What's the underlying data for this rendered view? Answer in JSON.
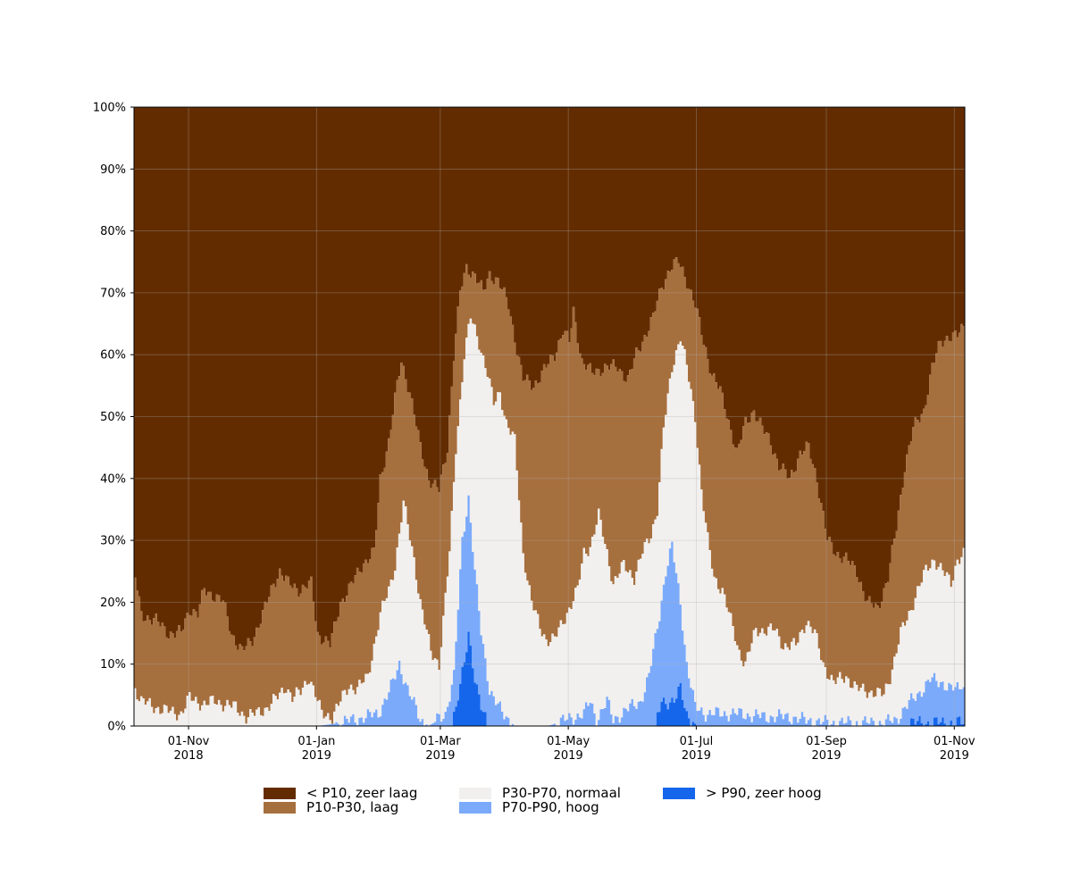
{
  "chart_data": {
    "type": "area",
    "stacked": true,
    "x_start": "2018-10-06",
    "x_end": "2019-11-06",
    "ylim": [
      0,
      100
    ],
    "y_ticks": [
      0,
      10,
      20,
      30,
      40,
      50,
      60,
      70,
      80,
      90,
      100
    ],
    "y_tick_labels": [
      "0%",
      "10%",
      "20%",
      "30%",
      "40%",
      "50%",
      "60%",
      "70%",
      "80%",
      "90%",
      "100%"
    ],
    "x_ticks": [
      {
        "date": "2018-11-01",
        "line1": "01-Nov",
        "line2": "2018"
      },
      {
        "date": "2019-01-01",
        "line1": "01-Jan",
        "line2": "2019"
      },
      {
        "date": "2019-03-01",
        "line1": "01-Mar",
        "line2": "2019"
      },
      {
        "date": "2019-05-01",
        "line1": "01-May",
        "line2": "2019"
      },
      {
        "date": "2019-07-01",
        "line1": "01-Jul",
        "line2": "2019"
      },
      {
        "date": "2019-09-01",
        "line1": "01-Sep",
        "line2": "2019"
      },
      {
        "date": "2019-11-01",
        "line1": "01-Nov",
        "line2": "2019"
      }
    ],
    "grid": true,
    "legend_position": "bottom",
    "series": [
      {
        "name": "< P10, zeer laag",
        "color": "#632c00"
      },
      {
        "name": "P10-P30, laag",
        "color": "#a66f3e"
      },
      {
        "name": "P30-P70, normaal",
        "color": "#f2f0ee"
      },
      {
        "name": "P70-P90, hoog",
        "color": "#7baafb"
      },
      {
        "name": "> P90, zeer hoog",
        "color": "#1566eb"
      }
    ],
    "cumulative_boundaries": {
      "p90": [
        [
          "2018-10-06",
          0
        ],
        [
          "2019-03-05",
          0
        ],
        [
          "2019-03-08",
          3
        ],
        [
          "2019-03-12",
          10
        ],
        [
          "2019-03-14",
          15
        ],
        [
          "2019-03-17",
          8
        ],
        [
          "2019-03-20",
          3
        ],
        [
          "2019-03-23",
          0
        ],
        [
          "2019-06-11",
          0
        ],
        [
          "2019-06-14",
          4
        ],
        [
          "2019-06-20",
          4
        ],
        [
          "2019-06-23",
          6
        ],
        [
          "2019-06-26",
          2
        ],
        [
          "2019-07-01",
          0
        ],
        [
          "2019-10-10",
          0
        ],
        [
          "2019-10-11",
          0.5
        ],
        [
          "2019-11-06",
          0.5
        ]
      ],
      "p70": [
        [
          "2018-10-06",
          0
        ],
        [
          "2019-01-01",
          0
        ],
        [
          "2019-01-12",
          0.5
        ],
        [
          "2019-01-30",
          2
        ],
        [
          "2019-02-06",
          7
        ],
        [
          "2019-02-09",
          10
        ],
        [
          "2019-02-13",
          6
        ],
        [
          "2019-02-19",
          1
        ],
        [
          "2019-02-23",
          0
        ],
        [
          "2019-03-03",
          2
        ],
        [
          "2019-03-07",
          8
        ],
        [
          "2019-03-11",
          30
        ],
        [
          "2019-03-14",
          37
        ],
        [
          "2019-03-17",
          25
        ],
        [
          "2019-03-20",
          15
        ],
        [
          "2019-03-24",
          6
        ],
        [
          "2019-03-30",
          2
        ],
        [
          "2019-04-05",
          0
        ],
        [
          "2019-04-10",
          0
        ],
        [
          "2019-04-21",
          0
        ],
        [
          "2019-05-08",
          2
        ],
        [
          "2019-05-11",
          4
        ],
        [
          "2019-05-14",
          1
        ],
        [
          "2019-05-19",
          4
        ],
        [
          "2019-05-22",
          1
        ],
        [
          "2019-05-30",
          3
        ],
        [
          "2019-06-04",
          4
        ],
        [
          "2019-06-08",
          8
        ],
        [
          "2019-06-13",
          18
        ],
        [
          "2019-06-16",
          25
        ],
        [
          "2019-06-19",
          29
        ],
        [
          "2019-06-23",
          20
        ],
        [
          "2019-06-26",
          10
        ],
        [
          "2019-06-30",
          3
        ],
        [
          "2019-07-05",
          2
        ],
        [
          "2019-07-20",
          2
        ],
        [
          "2019-08-01",
          1.5
        ],
        [
          "2019-08-14",
          1.5
        ],
        [
          "2019-08-20",
          1
        ],
        [
          "2019-09-01",
          0.5
        ],
        [
          "2019-09-28",
          0.5
        ],
        [
          "2019-10-04",
          1
        ],
        [
          "2019-10-08",
          3
        ],
        [
          "2019-10-14",
          5
        ],
        [
          "2019-10-20",
          7.5
        ],
        [
          "2019-10-26",
          7
        ],
        [
          "2019-10-30",
          6
        ],
        [
          "2019-11-03",
          6
        ],
        [
          "2019-11-04",
          7
        ],
        [
          "2019-11-06",
          6
        ]
      ],
      "p30": [
        [
          "2018-10-06",
          6
        ],
        [
          "2018-10-09",
          4
        ],
        [
          "2018-10-16",
          3
        ],
        [
          "2018-10-20",
          2.5
        ],
        [
          "2018-10-28",
          2
        ],
        [
          "2018-11-01",
          4.5
        ],
        [
          "2018-11-08",
          3.5
        ],
        [
          "2018-11-13",
          4
        ],
        [
          "2018-11-23",
          3
        ],
        [
          "2018-11-28",
          1.5
        ],
        [
          "2018-12-03",
          2
        ],
        [
          "2018-12-08",
          3
        ],
        [
          "2018-12-14",
          5
        ],
        [
          "2018-12-17",
          6.5
        ],
        [
          "2018-12-20",
          4.5
        ],
        [
          "2018-12-24",
          5.5
        ],
        [
          "2018-12-28",
          8
        ],
        [
          "2019-01-03",
          2
        ],
        [
          "2019-01-08",
          1.5
        ],
        [
          "2019-01-12",
          4
        ],
        [
          "2019-01-16",
          6.5
        ],
        [
          "2019-01-20",
          6
        ],
        [
          "2019-01-25",
          8
        ],
        [
          "2019-01-31",
          18
        ],
        [
          "2019-02-04",
          22
        ],
        [
          "2019-02-07",
          26
        ],
        [
          "2019-02-11",
          36
        ],
        [
          "2019-02-16",
          27
        ],
        [
          "2019-02-19",
          20
        ],
        [
          "2019-02-24",
          12
        ],
        [
          "2019-02-28",
          10
        ],
        [
          "2019-03-05",
          28
        ],
        [
          "2019-03-08",
          45
        ],
        [
          "2019-03-12",
          60
        ],
        [
          "2019-03-15",
          66
        ],
        [
          "2019-03-19",
          62
        ],
        [
          "2019-03-23",
          57
        ],
        [
          "2019-03-26",
          52
        ],
        [
          "2019-03-29",
          54
        ],
        [
          "2019-04-01",
          49
        ],
        [
          "2019-04-05",
          46
        ],
        [
          "2019-04-09",
          28
        ],
        [
          "2019-04-13",
          20
        ],
        [
          "2019-04-17",
          16
        ],
        [
          "2019-04-20",
          14
        ],
        [
          "2019-04-24",
          14
        ],
        [
          "2019-05-01",
          19
        ],
        [
          "2019-05-05",
          22
        ],
        [
          "2019-05-08",
          28
        ],
        [
          "2019-05-11",
          29
        ],
        [
          "2019-05-15",
          34
        ],
        [
          "2019-05-19",
          28
        ],
        [
          "2019-05-22",
          23
        ],
        [
          "2019-05-27",
          26
        ],
        [
          "2019-06-01",
          24
        ],
        [
          "2019-06-05",
          28
        ],
        [
          "2019-06-09",
          31
        ],
        [
          "2019-06-12",
          35
        ],
        [
          "2019-06-15",
          48
        ],
        [
          "2019-06-19",
          58
        ],
        [
          "2019-06-23",
          63
        ],
        [
          "2019-06-26",
          58
        ],
        [
          "2019-06-30",
          50
        ],
        [
          "2019-07-03",
          38
        ],
        [
          "2019-07-06",
          30
        ],
        [
          "2019-07-09",
          24
        ],
        [
          "2019-07-13",
          22
        ],
        [
          "2019-07-17",
          17
        ],
        [
          "2019-07-21",
          12
        ],
        [
          "2019-07-24",
          10
        ],
        [
          "2019-07-29",
          15.5
        ],
        [
          "2019-08-07",
          15.5
        ],
        [
          "2019-08-11",
          13
        ],
        [
          "2019-08-17",
          13
        ],
        [
          "2019-08-22",
          17
        ],
        [
          "2019-08-26",
          15
        ],
        [
          "2019-08-30",
          10
        ],
        [
          "2019-09-04",
          7
        ],
        [
          "2019-09-10",
          8
        ],
        [
          "2019-09-15",
          6
        ],
        [
          "2019-09-22",
          5.5
        ],
        [
          "2019-09-28",
          5
        ],
        [
          "2019-10-01",
          8
        ],
        [
          "2019-10-06",
          15
        ],
        [
          "2019-10-10",
          18
        ],
        [
          "2019-10-14",
          22
        ],
        [
          "2019-10-18",
          25
        ],
        [
          "2019-10-22",
          27
        ],
        [
          "2019-10-26",
          25
        ],
        [
          "2019-10-30",
          23
        ],
        [
          "2019-11-02",
          27
        ],
        [
          "2019-11-06",
          28
        ]
      ],
      "p10": [
        [
          "2018-10-06",
          24
        ],
        [
          "2018-10-09",
          18
        ],
        [
          "2018-10-16",
          17
        ],
        [
          "2018-10-22",
          15
        ],
        [
          "2018-10-28",
          15
        ],
        [
          "2018-11-01",
          19
        ],
        [
          "2018-11-05",
          18
        ],
        [
          "2018-11-08",
          22
        ],
        [
          "2018-11-13",
          21
        ],
        [
          "2018-11-17",
          20
        ],
        [
          "2018-11-21",
          15
        ],
        [
          "2018-11-26",
          12
        ],
        [
          "2018-12-01",
          14
        ],
        [
          "2018-12-06",
          18
        ],
        [
          "2018-12-11",
          23
        ],
        [
          "2018-12-14",
          25
        ],
        [
          "2018-12-18",
          23
        ],
        [
          "2018-12-24",
          22
        ],
        [
          "2018-12-29",
          23
        ],
        [
          "2019-01-01",
          15
        ],
        [
          "2019-01-07",
          13
        ],
        [
          "2019-01-12",
          20
        ],
        [
          "2019-01-16",
          22
        ],
        [
          "2019-01-22",
          26
        ],
        [
          "2019-01-28",
          28
        ],
        [
          "2019-01-31",
          40
        ],
        [
          "2019-02-04",
          46
        ],
        [
          "2019-02-08",
          55
        ],
        [
          "2019-02-10",
          59
        ],
        [
          "2019-02-14",
          54
        ],
        [
          "2019-02-19",
          45
        ],
        [
          "2019-02-23",
          40
        ],
        [
          "2019-02-28",
          38
        ],
        [
          "2019-03-04",
          45
        ],
        [
          "2019-03-07",
          60
        ],
        [
          "2019-03-10",
          70
        ],
        [
          "2019-03-13",
          74
        ],
        [
          "2019-03-17",
          73
        ],
        [
          "2019-03-21",
          70
        ],
        [
          "2019-03-24",
          73
        ],
        [
          "2019-03-28",
          72
        ],
        [
          "2019-04-02",
          68
        ],
        [
          "2019-04-06",
          61
        ],
        [
          "2019-04-09",
          56
        ],
        [
          "2019-04-14",
          55
        ],
        [
          "2019-04-20",
          58
        ],
        [
          "2019-04-24",
          60
        ],
        [
          "2019-04-28",
          64
        ],
        [
          "2019-05-01",
          62
        ],
        [
          "2019-05-03",
          67
        ],
        [
          "2019-05-07",
          59
        ],
        [
          "2019-05-12",
          57
        ],
        [
          "2019-05-18",
          58
        ],
        [
          "2019-05-24",
          58
        ],
        [
          "2019-05-29",
          56
        ],
        [
          "2019-06-02",
          60
        ],
        [
          "2019-06-06",
          63
        ],
        [
          "2019-06-10",
          66
        ],
        [
          "2019-06-14",
          71
        ],
        [
          "2019-06-18",
          74
        ],
        [
          "2019-06-22",
          75
        ],
        [
          "2019-06-26",
          72
        ],
        [
          "2019-06-30",
          68
        ],
        [
          "2019-07-04",
          62
        ],
        [
          "2019-07-08",
          57
        ],
        [
          "2019-07-12",
          54
        ],
        [
          "2019-07-17",
          48
        ],
        [
          "2019-07-20",
          44
        ],
        [
          "2019-07-24",
          49
        ],
        [
          "2019-07-28",
          51
        ],
        [
          "2019-08-01",
          48
        ],
        [
          "2019-08-05",
          46
        ],
        [
          "2019-08-09",
          42
        ],
        [
          "2019-08-14",
          40
        ],
        [
          "2019-08-19",
          44
        ],
        [
          "2019-08-23",
          45
        ],
        [
          "2019-08-27",
          40
        ],
        [
          "2019-09-01",
          30
        ],
        [
          "2019-09-05",
          28
        ],
        [
          "2019-09-10",
          27
        ],
        [
          "2019-09-15",
          25
        ],
        [
          "2019-09-20",
          20
        ],
        [
          "2019-09-25",
          19
        ],
        [
          "2019-09-30",
          24
        ],
        [
          "2019-10-04",
          32
        ],
        [
          "2019-10-08",
          42
        ],
        [
          "2019-10-12",
          48
        ],
        [
          "2019-10-17",
          51
        ],
        [
          "2019-10-21",
          58
        ],
        [
          "2019-10-25",
          62
        ],
        [
          "2019-10-29",
          63
        ],
        [
          "2019-11-02",
          63
        ],
        [
          "2019-11-06",
          65
        ]
      ]
    }
  }
}
